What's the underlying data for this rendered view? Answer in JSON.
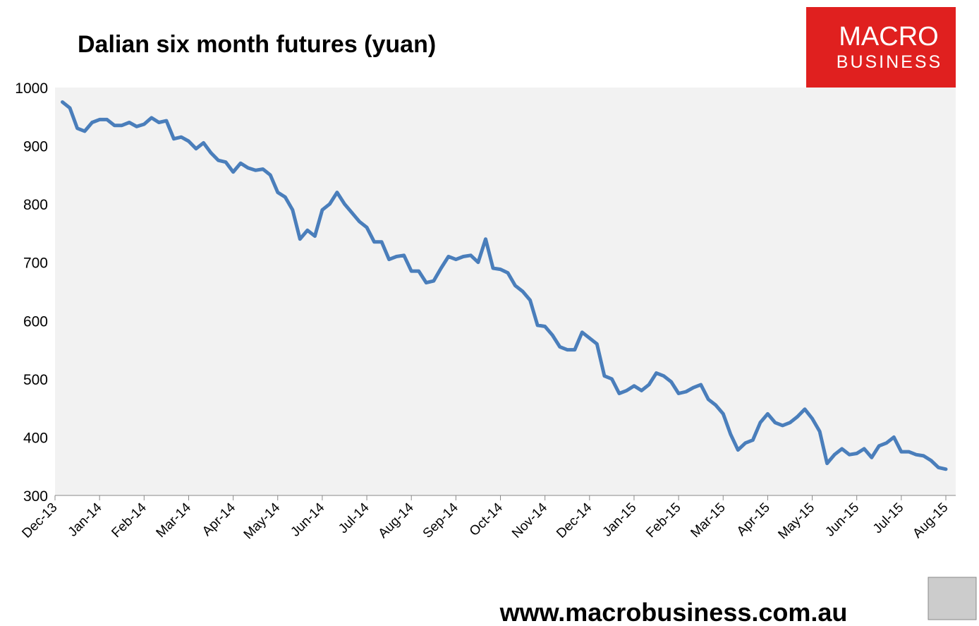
{
  "chart_data": {
    "type": "line",
    "title": "Dalian six month futures (yuan)",
    "logo": {
      "line1": "MACRO",
      "line2": "BUSINESS"
    },
    "footer": "www.macrobusiness.com.au",
    "color": "#4a7ebb",
    "grid": false,
    "categories": [
      "Dec-13",
      null,
      null,
      null,
      null,
      null,
      "Jan-14",
      null,
      null,
      null,
      null,
      null,
      "Feb-14",
      null,
      null,
      null,
      null,
      null,
      "Mar-14",
      null,
      null,
      null,
      null,
      null,
      "Apr-14",
      null,
      null,
      null,
      null,
      null,
      "May-14",
      null,
      null,
      null,
      null,
      null,
      "Jun-14",
      null,
      null,
      null,
      null,
      null,
      "Jul-14",
      null,
      null,
      null,
      null,
      null,
      "Aug-14",
      null,
      null,
      null,
      null,
      null,
      "Sep-14",
      null,
      null,
      null,
      null,
      null,
      "Oct-14",
      null,
      null,
      null,
      null,
      null,
      "Nov-14",
      null,
      null,
      null,
      null,
      null,
      "Dec-14",
      null,
      null,
      null,
      null,
      null,
      "Jan-15",
      null,
      null,
      null,
      null,
      null,
      "Feb-15",
      null,
      null,
      null,
      null,
      null,
      "Mar-15",
      null,
      null,
      null,
      null,
      null,
      "Apr-15",
      null,
      null,
      null,
      null,
      null,
      "May-15",
      null,
      null,
      null,
      null,
      null,
      "Jun-15",
      null,
      null,
      null,
      null,
      null,
      "Jul-15",
      null,
      null,
      null,
      null,
      null,
      "Aug-15"
    ],
    "values": [
      null,
      975,
      965,
      930,
      925,
      940,
      945,
      945,
      935,
      935,
      940,
      933,
      937,
      948,
      940,
      943,
      912,
      915,
      908,
      895,
      905,
      888,
      875,
      872,
      855,
      870,
      862,
      858,
      860,
      850,
      820,
      812,
      790,
      740,
      755,
      745,
      790,
      800,
      820,
      800,
      785,
      770,
      760,
      735,
      735,
      705,
      710,
      712,
      685,
      685,
      665,
      668,
      690,
      710,
      705,
      710,
      712,
      700,
      740,
      690,
      688,
      682,
      660,
      650,
      635,
      592,
      590,
      575,
      555,
      550,
      550,
      580,
      570,
      560,
      505,
      500,
      475,
      480,
      488,
      480,
      490,
      510,
      505,
      495,
      475,
      478,
      485,
      490,
      465,
      455,
      440,
      405,
      378,
      390,
      395,
      425,
      440,
      425,
      420,
      425,
      435,
      448,
      432,
      410,
      355,
      370,
      380,
      370,
      372,
      380,
      365,
      385,
      390,
      400,
      375,
      375,
      370,
      368,
      360,
      348,
      345
    ],
    "ylim": [
      300,
      1000
    ],
    "yticks": [
      300,
      400,
      500,
      600,
      700,
      800,
      900,
      1000
    ]
  }
}
